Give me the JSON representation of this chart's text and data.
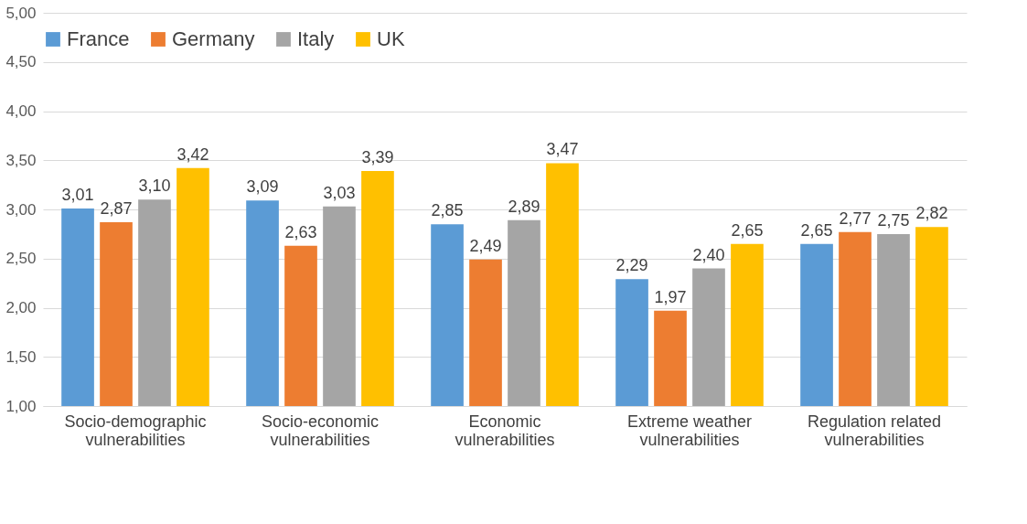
{
  "chart_data": {
    "type": "bar",
    "categories": [
      "Socio-demographic vulnerabilities",
      "Socio-economic vulnerabilities",
      "Economic vulnerabilities",
      "Extreme weather vulnerabilities",
      "Regulation related vulnerabilities"
    ],
    "series": [
      {
        "name": "France",
        "color": "#5b9bd5",
        "values": [
          3.01,
          3.09,
          2.85,
          2.29,
          2.65
        ],
        "value_labels": [
          "3,01",
          "3,09",
          "2,85",
          "2,29",
          "2,65"
        ]
      },
      {
        "name": "Germany",
        "color": "#ed7d31",
        "values": [
          2.87,
          2.63,
          2.49,
          1.97,
          2.77
        ],
        "value_labels": [
          "2,87",
          "2,63",
          "2,49",
          "1,97",
          "2,77"
        ]
      },
      {
        "name": "Italy",
        "color": "#a5a5a5",
        "values": [
          3.1,
          3.03,
          2.89,
          2.4,
          2.75
        ],
        "value_labels": [
          "3,10",
          "3,03",
          "2,89",
          "2,40",
          "2,75"
        ]
      },
      {
        "name": "UK",
        "color": "#ffc000",
        "values": [
          3.42,
          3.39,
          3.47,
          2.65,
          2.82
        ],
        "value_labels": [
          "3,42",
          "3,39",
          "3,47",
          "2,65",
          "2,82"
        ]
      }
    ],
    "ylim": [
      1,
      5
    ],
    "yticks": [
      {
        "value": 1,
        "label": "1,00"
      },
      {
        "value": 1.5,
        "label": "1,50"
      },
      {
        "value": 2,
        "label": "2,00"
      },
      {
        "value": 2.5,
        "label": "2,50"
      },
      {
        "value": 3,
        "label": "3,00"
      },
      {
        "value": 3.5,
        "label": "3,50"
      },
      {
        "value": 4,
        "label": "4,00"
      },
      {
        "value": 4.5,
        "label": "4,50"
      },
      {
        "value": 5,
        "label": "5,00"
      }
    ],
    "grid": "y",
    "legend": "top"
  }
}
